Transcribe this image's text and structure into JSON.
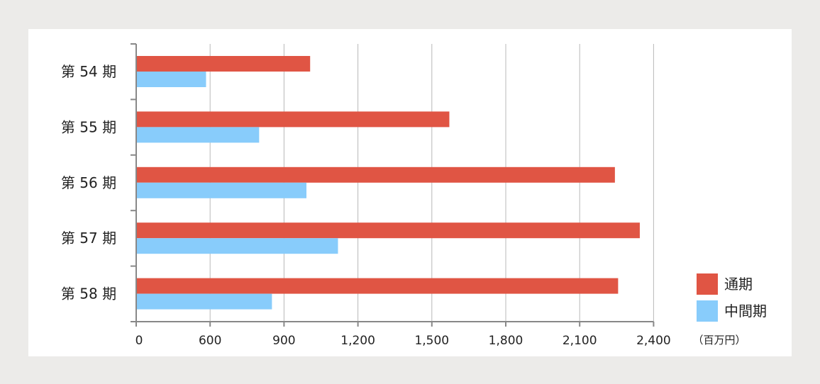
{
  "chart_data": {
    "type": "bar",
    "orientation": "horizontal",
    "categories": [
      "第 54 期",
      "第 55 期",
      "第 56 期",
      "第 57 期",
      "第 58 期"
    ],
    "series": [
      {
        "name": "通期",
        "values": [
          1006,
          1571,
          2243,
          2344,
          2256
        ],
        "color": "#e05544"
      },
      {
        "name": "中間期",
        "values": [
          567,
          799,
          991,
          1119,
          851
        ],
        "color": "#88ccfb"
      }
    ],
    "x_ticks": [
      "0",
      "600",
      "900",
      "1,200",
      "1,500",
      "1,800",
      "2,100",
      "2,400"
    ],
    "unit_label": "（百万円）",
    "grid": true,
    "legend_position": "bottom-right"
  }
}
